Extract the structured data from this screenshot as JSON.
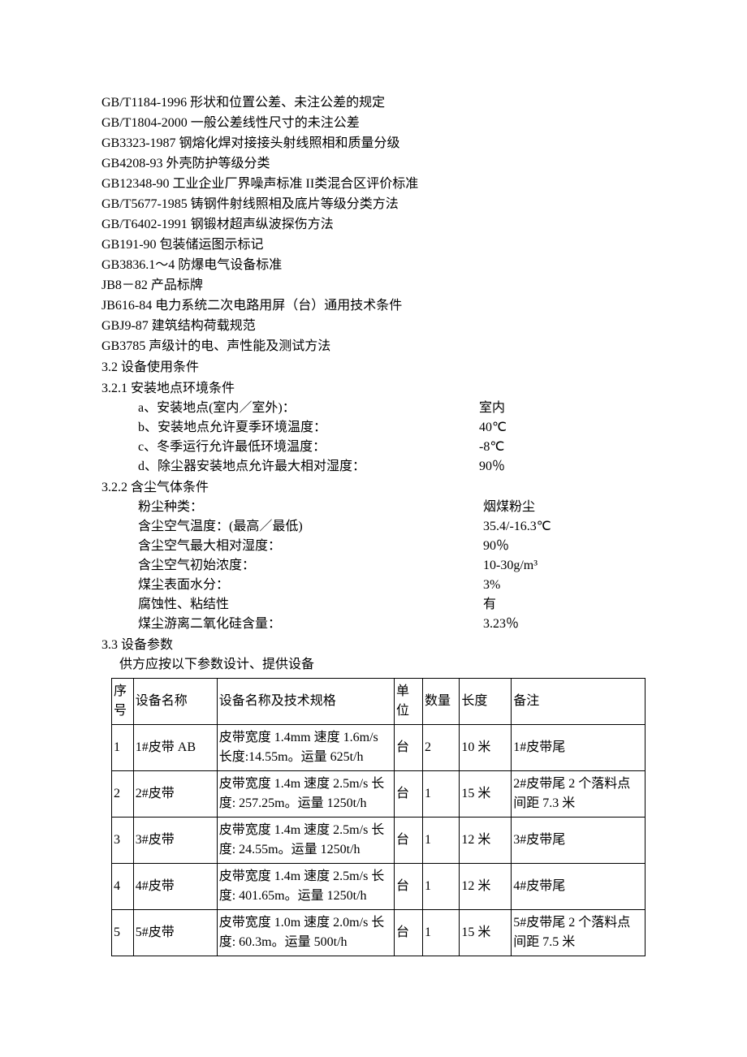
{
  "standards": [
    "GB/T1184-1996 形状和位置公差、未注公差的规定",
    "GB/T1804-2000 一般公差线性尺寸的未注公差",
    "GB3323-1987 钢熔化焊对接接头射线照相和质量分级",
    "GB4208-93 外壳防护等级分类",
    "GB12348-90 工业企业厂界噪声标准 II类混合区评价标准",
    "GB/T5677-1985 铸钢件射线照相及底片等级分类方法",
    "GB/T6402-1991 钢锻材超声纵波探伤方法",
    "GB191-90 包装储运图示标记",
    "GB3836.1～4  防爆电气设备标准",
    "JB8－82 产品标牌",
    "JB616-84 电力系统二次电路用屏（台）通用技术条件",
    "GBJ9-87 建筑结构荷载规范",
    "GB3785 声级计的电、声性能及测试方法"
  ],
  "section_3_2": "3.2    设备使用条件",
  "section_3_2_1": "3.2.1  安装地点环境条件",
  "env_conditions": [
    {
      "key": "a、安装地点(室内／室外)：",
      "val": "室内"
    },
    {
      "key": "b、安装地点允许夏季环境温度：",
      "val": "40℃"
    },
    {
      "key": "c、冬季运行允许最低环境温度：",
      "val": "-8℃"
    },
    {
      "key": "d、除尘器安装地点允许最大相对湿度：",
      "val": "90％"
    }
  ],
  "section_3_2_2": "3.2.2    含尘气体条件",
  "dust_conditions": [
    {
      "key": "粉尘种类：",
      "val": "烟煤粉尘"
    },
    {
      "key": "含尘空气温度：(最高／最低)",
      "val": " 35.4/-16.3℃"
    },
    {
      "key": "含尘空气最大相对湿度：",
      "val": "90％"
    },
    {
      "key": "含尘空气初始浓度：",
      "val": "10-30g/m³"
    },
    {
      "key": " 煤尘表面水分：",
      "val": " 3%"
    },
    {
      "key": "腐蚀性、粘结性",
      "val": " 有"
    },
    {
      "key": " 煤尘游离二氧化硅含量：",
      "val": "3.23％"
    }
  ],
  "section_3_3": "3.3  设备参数",
  "section_3_3_sub": "供方应按以下参数设计、提供设备",
  "table": {
    "headers": [
      "序号",
      "设备名称",
      "设备名称及技术规格",
      "单位",
      "数量",
      "长度",
      "备注"
    ],
    "rows": [
      [
        "1",
        "1#皮带 AB",
        "皮带宽度 1.4mm  速度 1.6m/s 长度:14.55m。运量 625t/h",
        "台",
        "2",
        "10 米",
        "1#皮带尾"
      ],
      [
        "2",
        "2#皮带",
        "皮带宽度 1.4m  速度 2.5m/s 长度: 257.25m。运量 1250t/h",
        "台",
        "1",
        "15 米",
        "2#皮带尾 2 个落料点间距 7.3 米"
      ],
      [
        "3",
        "3#皮带",
        "皮带宽度 1.4m  速度 2.5m/s 长度: 24.55m。运量 1250t/h",
        "台",
        "1",
        "12 米",
        "3#皮带尾"
      ],
      [
        "4",
        "4#皮带",
        "皮带宽度 1.4m  速度 2.5m/s 长度: 401.65m。运量 1250t/h",
        "台",
        "1",
        "12 米",
        "4#皮带尾"
      ],
      [
        "5",
        "5#皮带",
        "皮带宽度 1.0m  速度 2.0m/s 长度: 60.3m。运量 500t/h",
        "台",
        "1",
        "15 米",
        "5#皮带尾 2 个落料点间距 7.5 米"
      ]
    ]
  }
}
